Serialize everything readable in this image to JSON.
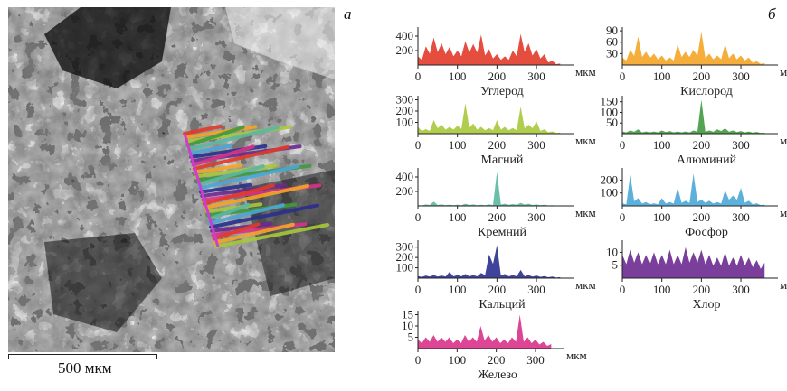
{
  "panel_a": {
    "label": "а",
    "scale_bar_text": "500 мкм"
  },
  "panel_b": {
    "label": "б"
  },
  "chart_data": [
    {
      "type": "area",
      "title": "Углерод",
      "color": "#e23b2a",
      "xlabel": "мкм",
      "xlim": [
        0,
        380
      ],
      "xticks": [
        0,
        100,
        200,
        300
      ],
      "ylim": [
        0,
        500
      ],
      "yticks": [
        200,
        400
      ],
      "x": [
        0,
        20,
        40,
        60,
        80,
        100,
        120,
        140,
        160,
        180,
        200,
        220,
        240,
        260,
        280,
        300,
        320,
        340,
        360
      ],
      "values": [
        120,
        260,
        380,
        300,
        250,
        200,
        330,
        290,
        420,
        220,
        150,
        120,
        200,
        430,
        300,
        220,
        150,
        60,
        20
      ]
    },
    {
      "type": "area",
      "title": "Кислород",
      "color": "#f4a526",
      "xlabel": "мкм",
      "xlim": [
        0,
        380
      ],
      "xticks": [
        0,
        100,
        200,
        300
      ],
      "ylim": [
        0,
        95
      ],
      "yticks": [
        30,
        60,
        90
      ],
      "x": [
        0,
        20,
        40,
        60,
        80,
        100,
        120,
        140,
        160,
        180,
        200,
        220,
        240,
        260,
        280,
        300,
        320,
        340,
        360
      ],
      "values": [
        20,
        40,
        75,
        35,
        30,
        25,
        20,
        55,
        35,
        40,
        88,
        30,
        25,
        55,
        30,
        25,
        20,
        10,
        5
      ]
    },
    {
      "type": "area",
      "title": "Магний",
      "color": "#a8c83a",
      "xlabel": "мкм",
      "xlim": [
        0,
        380
      ],
      "xticks": [
        0,
        100,
        200,
        300
      ],
      "ylim": [
        0,
        320
      ],
      "yticks": [
        100,
        200,
        300
      ],
      "x": [
        0,
        20,
        40,
        60,
        80,
        100,
        120,
        140,
        160,
        180,
        200,
        220,
        240,
        260,
        280,
        300,
        320,
        340,
        360
      ],
      "values": [
        60,
        40,
        120,
        80,
        60,
        70,
        270,
        90,
        60,
        50,
        120,
        60,
        50,
        240,
        80,
        110,
        40,
        20,
        10
      ]
    },
    {
      "type": "area",
      "title": "Алюминий",
      "color": "#3f9a3f",
      "xlabel": "мкм",
      "xlim": [
        0,
        380
      ],
      "xticks": [
        0,
        100,
        200,
        300
      ],
      "ylim": [
        0,
        170
      ],
      "yticks": [
        50,
        100,
        150
      ],
      "x": [
        0,
        20,
        40,
        60,
        80,
        100,
        120,
        140,
        160,
        180,
        200,
        220,
        240,
        260,
        280,
        300,
        320,
        340,
        360
      ],
      "values": [
        10,
        15,
        20,
        10,
        10,
        15,
        12,
        10,
        10,
        15,
        160,
        15,
        20,
        25,
        15,
        12,
        10,
        8,
        5
      ]
    },
    {
      "type": "area",
      "title": "Кремний",
      "color": "#5bb8a0",
      "xlabel": "мкм",
      "xlim": [
        0,
        380
      ],
      "xticks": [
        0,
        100,
        200,
        300
      ],
      "ylim": [
        0,
        500
      ],
      "yticks": [
        200,
        400
      ],
      "x": [
        0,
        20,
        40,
        60,
        80,
        100,
        120,
        140,
        160,
        180,
        200,
        220,
        240,
        260,
        280,
        300,
        320,
        340,
        360
      ],
      "values": [
        10,
        20,
        60,
        20,
        15,
        15,
        30,
        20,
        15,
        20,
        470,
        30,
        25,
        40,
        30,
        20,
        15,
        10,
        5
      ]
    },
    {
      "type": "area",
      "title": "Фосфор",
      "color": "#4aa8d8",
      "xlabel": "мкм",
      "xlim": [
        0,
        380
      ],
      "xticks": [
        0,
        100,
        200,
        300
      ],
      "ylim": [
        0,
        280
      ],
      "yticks": [
        100,
        200
      ],
      "x": [
        0,
        20,
        40,
        60,
        80,
        100,
        120,
        140,
        160,
        180,
        200,
        220,
        240,
        260,
        280,
        300,
        320,
        340,
        360
      ],
      "values": [
        20,
        240,
        60,
        30,
        20,
        60,
        30,
        140,
        40,
        250,
        50,
        40,
        30,
        120,
        80,
        140,
        40,
        20,
        10
      ]
    },
    {
      "type": "area",
      "title": "Кальций",
      "color": "#2a2f8f",
      "xlabel": "мкм",
      "xlim": [
        0,
        380
      ],
      "xticks": [
        0,
        100,
        200,
        300
      ],
      "ylim": [
        0,
        350
      ],
      "yticks": [
        100,
        200,
        300
      ],
      "x": [
        0,
        20,
        40,
        60,
        80,
        100,
        120,
        140,
        160,
        180,
        200,
        220,
        240,
        260,
        280,
        300,
        320,
        340,
        360
      ],
      "values": [
        20,
        25,
        30,
        25,
        60,
        30,
        40,
        30,
        50,
        230,
        320,
        40,
        30,
        80,
        30,
        25,
        20,
        15,
        10
      ]
    },
    {
      "type": "area",
      "title": "Хлор",
      "color": "#6a2a8f",
      "xlabel": "мкм",
      "xlim": [
        0,
        380
      ],
      "xticks": [
        0,
        100,
        200,
        300
      ],
      "ylim": [
        0,
        14
      ],
      "yticks": [
        5,
        10
      ],
      "x": [
        0,
        20,
        40,
        60,
        80,
        100,
        120,
        140,
        160,
        180,
        200,
        220,
        240,
        260,
        280,
        300,
        320,
        340,
        360
      ],
      "values": [
        9,
        11,
        10,
        9,
        10,
        9,
        11,
        9,
        12,
        10,
        11,
        9,
        8,
        10,
        8,
        9,
        8,
        7,
        6
      ]
    },
    {
      "type": "area",
      "title": "Железо",
      "color": "#d8328a",
      "xlabel": "мкм",
      "xlim": [
        0,
        360
      ],
      "xticks": [
        0,
        100,
        200,
        300
      ],
      "ylim": [
        0,
        16
      ],
      "yticks": [
        5,
        10,
        15
      ],
      "x": [
        0,
        20,
        40,
        60,
        80,
        100,
        120,
        140,
        160,
        180,
        200,
        220,
        240,
        260,
        280,
        300,
        320,
        340
      ],
      "values": [
        4,
        5,
        6,
        5,
        5,
        4,
        6,
        5,
        10,
        6,
        5,
        4,
        5,
        15,
        5,
        4,
        3,
        2
      ]
    }
  ]
}
